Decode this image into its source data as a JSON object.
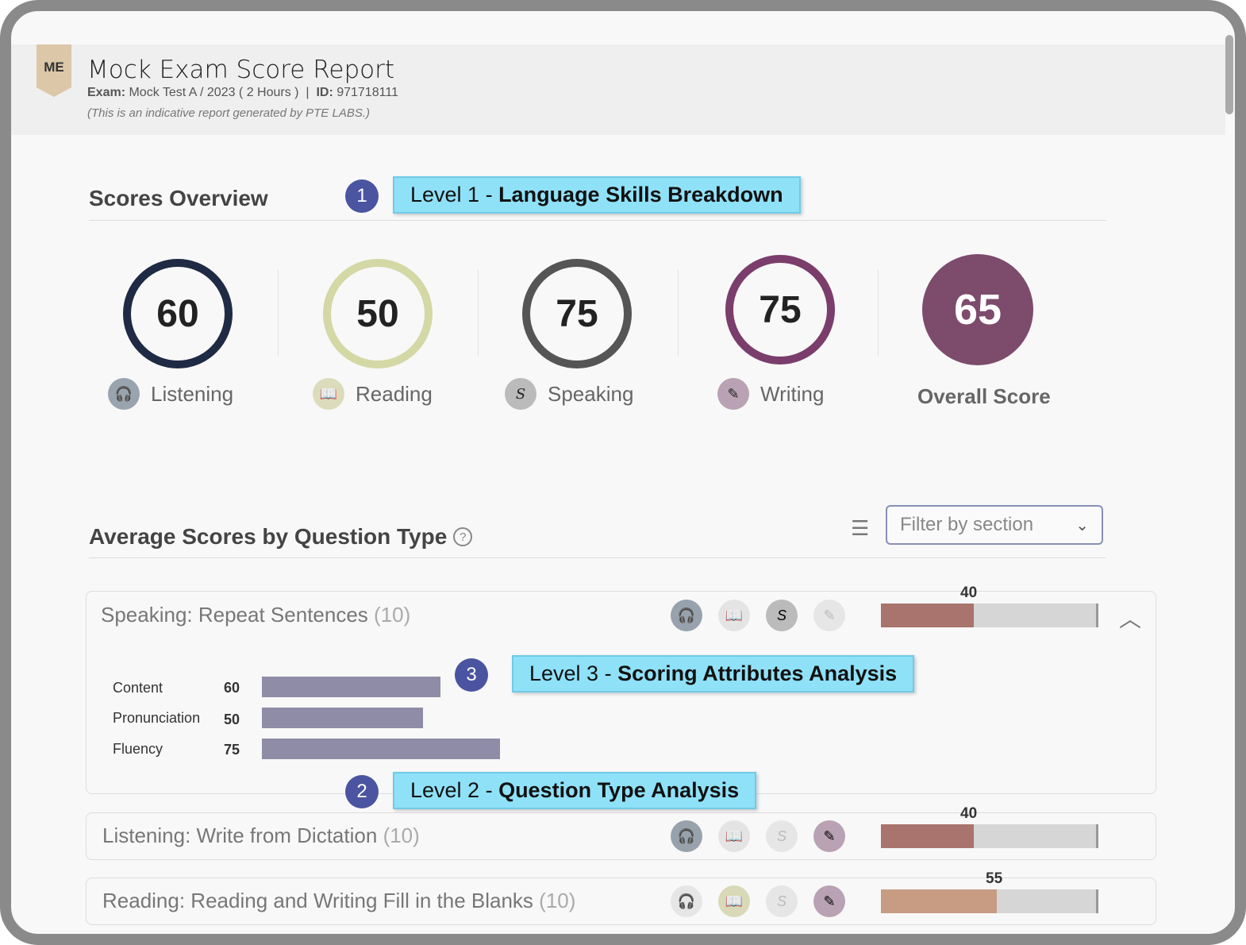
{
  "header": {
    "badge": "ME",
    "title": "Mock Exam Score Report",
    "exam_label": "Exam:",
    "exam_value": " Mock Test A / 2023 ( 2 Hours )  |  ",
    "id_label": "ID:",
    "id_value": " 971718111",
    "note": "(This is an indicative report generated by PTE LABS.)"
  },
  "overview": {
    "title": "Scores Overview",
    "skills": [
      {
        "label": "Listening",
        "score": "60",
        "color": "#1f2a44",
        "icon": "headphones-icon"
      },
      {
        "label": "Reading",
        "score": "50",
        "color": "#d3d8a5",
        "icon": "book-icon"
      },
      {
        "label": "Speaking",
        "score": "75",
        "color": "#555555",
        "icon": "speaking-icon"
      },
      {
        "label": "Writing",
        "score": "75",
        "color": "#7b3d6b",
        "icon": "writing-icon"
      }
    ],
    "overall": {
      "label": "Overall Score",
      "score": "65",
      "color": "#7d4b6c"
    }
  },
  "avg": {
    "title": "Average Scores by Question Type",
    "help": "?",
    "filter_placeholder": "Filter by section"
  },
  "questions": [
    {
      "label": "Speaking: Repeat Sentences",
      "count": "(10)",
      "score": "40",
      "percent": 43,
      "color": "#a9736e",
      "expanded": true,
      "attributes": [
        {
          "name": "Content",
          "value": "60"
        },
        {
          "name": "Pronunciation",
          "value": "50"
        },
        {
          "name": "Fluency",
          "value": "75"
        }
      ]
    },
    {
      "label": "Listening: Write from Dictation",
      "count": "(10)",
      "score": "40",
      "percent": 43,
      "color": "#a9736e"
    },
    {
      "label": "Reading: Reading and Writing Fill in the Blanks",
      "count": "(10)",
      "score": "55",
      "percent": 54,
      "color": "#c89c82"
    }
  ],
  "callouts": [
    {
      "num": "1",
      "prefix": "Level 1 - ",
      "bold": "Language Skills Breakdown"
    },
    {
      "num": "2",
      "prefix": "Level 2 - ",
      "bold": "Question Type Analysis"
    },
    {
      "num": "3",
      "prefix": "Level 3 - ",
      "bold": "Scoring Attributes Analysis"
    }
  ]
}
